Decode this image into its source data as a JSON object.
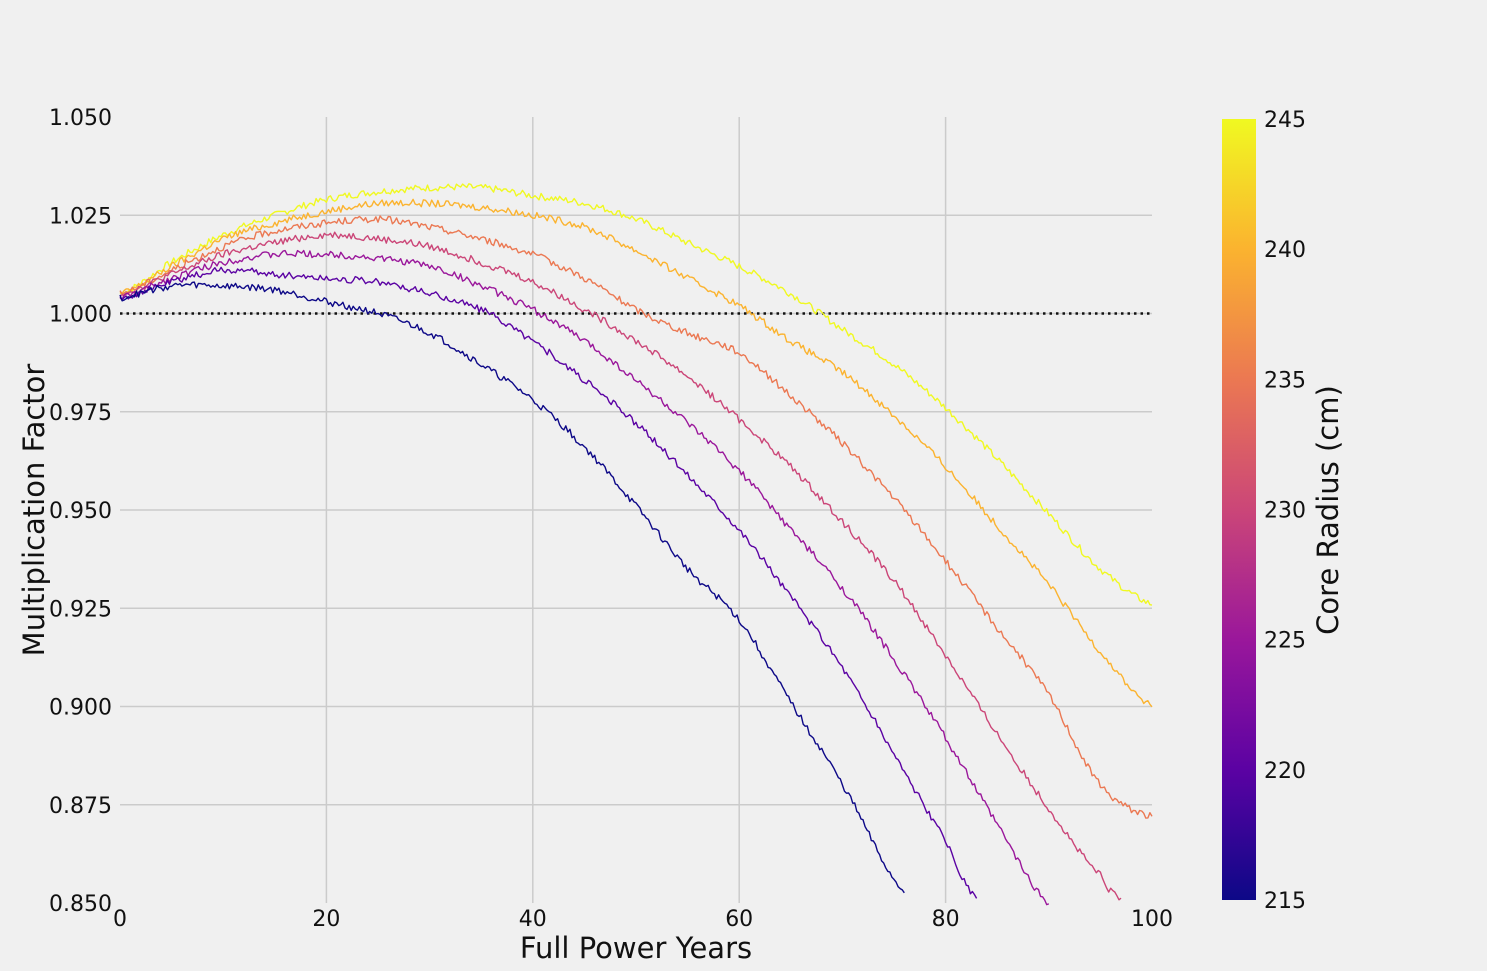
{
  "chart_data": {
    "type": "line",
    "title": "",
    "xlabel": "Full Power Years",
    "ylabel": "Multiplication Factor",
    "xlim": [
      0,
      100
    ],
    "ylim": [
      0.85,
      1.05
    ],
    "xticks": [
      "0",
      "20",
      "40",
      "60",
      "80",
      "100"
    ],
    "yticks": [
      "0.850",
      "0.875",
      "0.900",
      "0.925",
      "0.950",
      "0.975",
      "1.000",
      "1.025",
      "1.050"
    ],
    "grid": true,
    "reference_line": {
      "y": 1.0,
      "style": "dotted",
      "color": "#111111"
    },
    "colorbar": {
      "label": "Core Radius (cm)",
      "colormap": "plasma",
      "range": [
        215,
        245
      ],
      "ticks": [
        "215",
        "220",
        "225",
        "230",
        "235",
        "240",
        "245"
      ],
      "colors": [
        "#0d0887",
        "#5b02a3",
        "#9a179b",
        "#cb4678",
        "#eb7852",
        "#fbb32f",
        "#f0f921"
      ]
    },
    "series": [
      {
        "radius": 215,
        "color": "#0d0887",
        "x": [
          0,
          5,
          10,
          15,
          20,
          25,
          30,
          35,
          40,
          45,
          50,
          55,
          60,
          65,
          70,
          76
        ],
        "y": [
          1.004,
          1.007,
          1.007,
          1.006,
          1.003,
          1.0,
          0.995,
          0.987,
          0.978,
          0.966,
          0.951,
          0.935,
          0.922,
          0.901,
          0.88,
          0.853
        ]
      },
      {
        "radius": 220,
        "color": "#5b02a3",
        "x": [
          0,
          5,
          10,
          15,
          20,
          25,
          30,
          35,
          40,
          45,
          50,
          55,
          60,
          65,
          70,
          75,
          80,
          83
        ],
        "y": [
          1.004,
          1.008,
          1.011,
          1.01,
          1.009,
          1.008,
          1.005,
          1.001,
          0.993,
          0.983,
          0.972,
          0.959,
          0.945,
          0.928,
          0.91,
          0.888,
          0.866,
          0.851
        ]
      },
      {
        "radius": 225,
        "color": "#9a179b",
        "x": [
          0,
          5,
          10,
          15,
          20,
          25,
          30,
          35,
          40,
          45,
          50,
          55,
          60,
          65,
          70,
          75,
          80,
          85,
          90
        ],
        "y": [
          1.004,
          1.009,
          1.013,
          1.015,
          1.015,
          1.014,
          1.012,
          1.007,
          1.001,
          0.993,
          0.983,
          0.972,
          0.96,
          0.945,
          0.93,
          0.912,
          0.892,
          0.87,
          0.85
        ]
      },
      {
        "radius": 230,
        "color": "#cb4678",
        "x": [
          0,
          5,
          10,
          15,
          20,
          25,
          30,
          35,
          40,
          45,
          50,
          55,
          60,
          65,
          70,
          75,
          80,
          85,
          90,
          95,
          97
        ],
        "y": [
          1.005,
          1.01,
          1.015,
          1.018,
          1.02,
          1.019,
          1.017,
          1.013,
          1.008,
          1.001,
          0.993,
          0.984,
          0.973,
          0.961,
          0.947,
          0.932,
          0.913,
          0.893,
          0.874,
          0.857,
          0.851
        ]
      },
      {
        "radius": 235,
        "color": "#eb7852",
        "x": [
          0,
          5,
          10,
          15,
          20,
          25,
          30,
          35,
          40,
          45,
          50,
          55,
          60,
          65,
          70,
          75,
          80,
          85,
          90,
          95,
          100
        ],
        "y": [
          1.005,
          1.011,
          1.017,
          1.021,
          1.023,
          1.024,
          1.022,
          1.019,
          1.015,
          1.009,
          1.001,
          0.995,
          0.99,
          0.979,
          0.967,
          0.953,
          0.937,
          0.92,
          0.903,
          0.88,
          0.872
        ]
      },
      {
        "radius": 240,
        "color": "#fbb32f",
        "x": [
          0,
          5,
          10,
          15,
          20,
          25,
          30,
          35,
          40,
          45,
          50,
          55,
          60,
          65,
          70,
          75,
          80,
          85,
          90,
          95,
          100
        ],
        "y": [
          1.005,
          1.012,
          1.019,
          1.023,
          1.026,
          1.028,
          1.028,
          1.027,
          1.025,
          1.022,
          1.016,
          1.009,
          1.002,
          0.993,
          0.985,
          0.974,
          0.961,
          0.946,
          0.931,
          0.914,
          0.9
        ]
      },
      {
        "radius": 245,
        "color": "#f0f921",
        "x": [
          0,
          5,
          10,
          15,
          20,
          25,
          30,
          35,
          40,
          45,
          50,
          55,
          60,
          65,
          70,
          75,
          80,
          85,
          90,
          95,
          100
        ],
        "y": [
          1.005,
          1.013,
          1.02,
          1.025,
          1.029,
          1.031,
          1.032,
          1.032,
          1.03,
          1.028,
          1.024,
          1.018,
          1.012,
          1.005,
          0.996,
          0.987,
          0.976,
          0.963,
          0.949,
          0.935,
          0.926
        ]
      }
    ]
  }
}
